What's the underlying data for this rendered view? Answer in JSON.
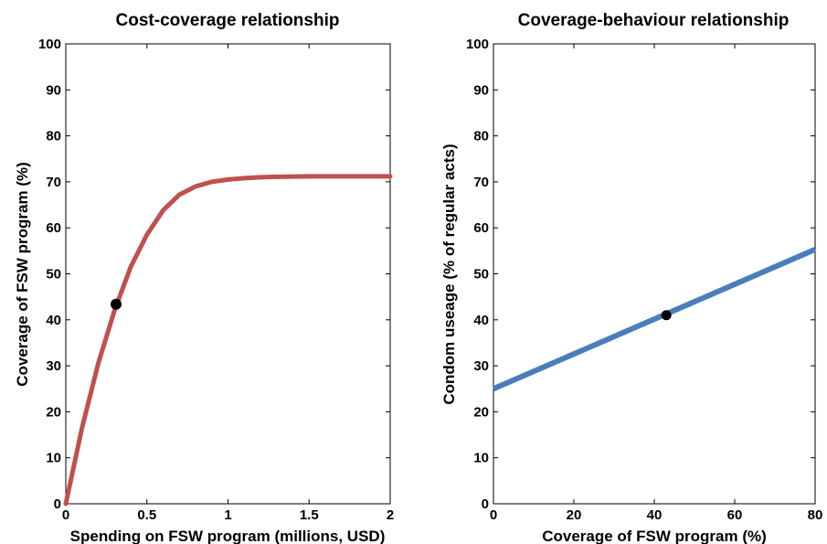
{
  "chart_data": [
    {
      "type": "line",
      "title": "Cost-coverage relationship",
      "xlabel": "Spending on FSW program (millions, USD)",
      "ylabel": "Coverage of FSW program (%)",
      "xlim": [
        0,
        2
      ],
      "ylim": [
        0,
        100
      ],
      "xticks": [
        "0",
        "0.5",
        "1",
        "1.5",
        "2"
      ],
      "yticks": [
        "0",
        "10",
        "20",
        "30",
        "40",
        "50",
        "60",
        "70",
        "80",
        "90",
        "100"
      ],
      "line_color": "#c0504d",
      "series": [
        {
          "x": [
            0,
            0.1,
            0.2,
            0.3,
            0.4,
            0.5,
            0.6,
            0.7,
            0.8,
            0.9,
            1.0,
            1.1,
            1.2,
            1.3,
            1.4,
            1.5,
            1.6,
            1.7,
            1.8,
            1.9,
            2.0
          ],
          "y": [
            0,
            16.5,
            30.5,
            42.0,
            51.5,
            58.5,
            63.8,
            67.2,
            69.0,
            70.0,
            70.5,
            70.8,
            71.0,
            71.1,
            71.15,
            71.2,
            71.2,
            71.2,
            71.2,
            71.2,
            71.2
          ]
        }
      ],
      "point": {
        "x": 0.31,
        "y": 43.4
      },
      "point_color": "#000000"
    },
    {
      "type": "line",
      "title": "Coverage-behaviour relationship",
      "xlabel": "Coverage of FSW program (%)",
      "ylabel": "Condom useage (% of regular acts)",
      "xlim": [
        0,
        80
      ],
      "ylim": [
        0,
        100
      ],
      "xticks": [
        "0",
        "20",
        "40",
        "60",
        "80"
      ],
      "yticks": [
        "0",
        "10",
        "20",
        "30",
        "40",
        "50",
        "60",
        "70",
        "80",
        "90",
        "100"
      ],
      "line_color": "#4a7ebb",
      "series": [
        {
          "x": [
            0,
            80
          ],
          "y": [
            25,
            55.3
          ]
        }
      ],
      "point": {
        "x": 43,
        "y": 41
      },
      "point_color": "#000000"
    }
  ]
}
